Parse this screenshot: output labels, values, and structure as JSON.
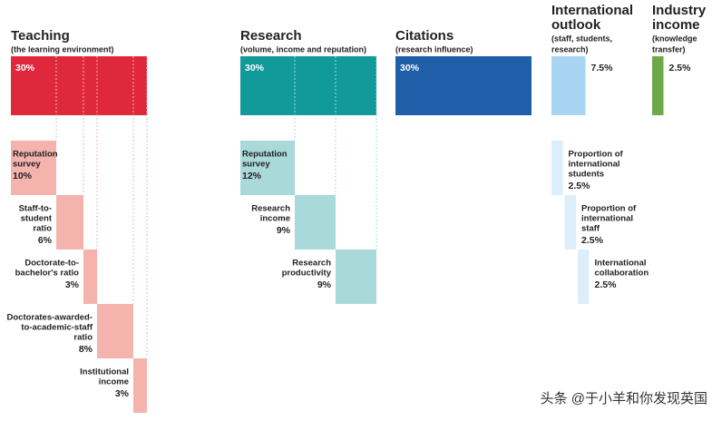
{
  "groups": [
    {
      "title": [
        "Teaching"
      ],
      "subtitle": [
        "(the learning environment)"
      ],
      "weight": 30,
      "weight_label": "30%",
      "color": "#e0283c",
      "light": "#f4b3ad",
      "items": [
        {
          "label": [
            "Reputation",
            "survey"
          ],
          "weight": 10,
          "weight_label": "10%"
        },
        {
          "label": [
            "Staff-to-",
            "student",
            "ratio"
          ],
          "weight": 6,
          "weight_label": "6%"
        },
        {
          "label": [
            "Doctorate-to-",
            "bachelor's ratio"
          ],
          "weight": 3,
          "weight_label": "3%"
        },
        {
          "label": [
            "Doctorates-awarded-",
            "to-academic-staff",
            "ratio"
          ],
          "weight": 8,
          "weight_label": "8%"
        },
        {
          "label": [
            "Institutional",
            "income"
          ],
          "weight": 3,
          "weight_label": "3%"
        }
      ]
    },
    {
      "title": [
        "Research"
      ],
      "subtitle": [
        "(volume, income and reputation)"
      ],
      "weight": 30,
      "weight_label": "30%",
      "color": "#12999a",
      "light": "#a9d9d8",
      "items": [
        {
          "label": [
            "Reputation",
            "survey"
          ],
          "weight": 12,
          "weight_label": "12%"
        },
        {
          "label": [
            "Research",
            "income"
          ],
          "weight": 9,
          "weight_label": "9%"
        },
        {
          "label": [
            "Research",
            "productivity"
          ],
          "weight": 9,
          "weight_label": "9%"
        }
      ]
    },
    {
      "title": [
        "Citations"
      ],
      "subtitle": [
        "(research influence)"
      ],
      "weight": 30,
      "weight_label": "30%",
      "color": "#1f5ea8",
      "light": "#a9c4e4",
      "items": []
    },
    {
      "title": [
        "International",
        "outlook"
      ],
      "subtitle": [
        "(staff, students,",
        "research)"
      ],
      "weight": 7.5,
      "weight_label": "7.5%",
      "color": "#a7d4f0",
      "light": "#dceefa",
      "items": [
        {
          "label": [
            "Proportion of",
            "international",
            "students"
          ],
          "weight": 2.5,
          "weight_label": "2.5%"
        },
        {
          "label": [
            "Proportion of",
            "international",
            "staff"
          ],
          "weight": 2.5,
          "weight_label": "2.5%"
        },
        {
          "label": [
            "International",
            "collaboration"
          ],
          "weight": 2.5,
          "weight_label": "2.5%"
        }
      ]
    },
    {
      "title": [
        "Industry",
        "income"
      ],
      "subtitle": [
        "(knowledge",
        "transfer)"
      ],
      "weight": 2.5,
      "weight_label": "2.5%",
      "color": "#6ea84a",
      "light": "#cfe3c1",
      "items": []
    }
  ],
  "watermark": "头条 @于小羊和你发现英国"
}
